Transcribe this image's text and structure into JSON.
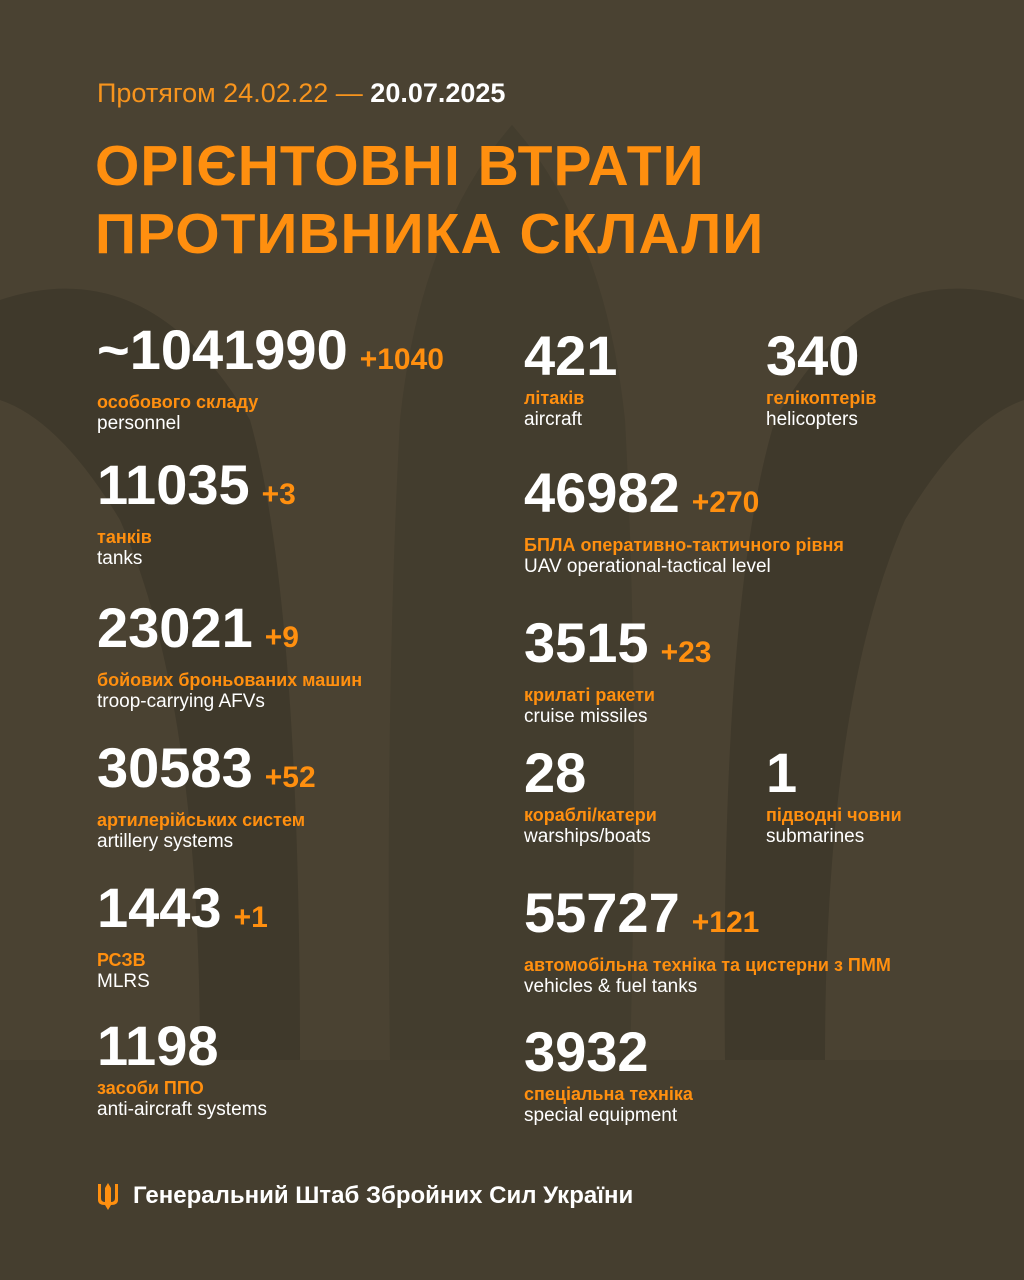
{
  "colors": {
    "accent": "#ff8f0f",
    "background": "#4a4232",
    "text": "#ffffff"
  },
  "header": {
    "period_prefix": "Протягом 24.02.22 —",
    "period_end": "20.07.2025",
    "title_line1": "ОРІЄНТОВНІ ВТРАТИ",
    "title_line2": "ПРОТИВНИКА СКЛАЛИ"
  },
  "left": [
    {
      "value": "~1041990",
      "delta": "+1040",
      "uk": "особового складу",
      "en": "personnel"
    },
    {
      "value": "11035",
      "delta": "+3",
      "uk": "танків",
      "en": "tanks"
    },
    {
      "value": "23021",
      "delta": "+9",
      "uk": "бойових броньованих машин",
      "en": "troop-carrying AFVs"
    },
    {
      "value": "30583",
      "delta": "+52",
      "uk": "артилерійських систем",
      "en": "artillery systems"
    },
    {
      "value": "1443",
      "delta": "+1",
      "uk": "РСЗВ",
      "en": "MLRS"
    },
    {
      "value": "1198",
      "delta": "",
      "uk": "засоби ППО",
      "en": "anti-aircraft systems"
    }
  ],
  "right": [
    {
      "value": "421",
      "delta": "",
      "uk": "літаків",
      "en": "aircraft"
    },
    {
      "value": "340",
      "delta": "",
      "uk": "гелікоптерів",
      "en": "helicopters"
    },
    {
      "value": "46982",
      "delta": "+270",
      "uk": "БПЛА оперативно-тактичного рівня",
      "en": "UAV operational-tactical level"
    },
    {
      "value": "3515",
      "delta": "+23",
      "uk": "крилаті ракети",
      "en": "cruise missiles"
    },
    {
      "value": "28",
      "delta": "",
      "uk": "кораблі/катери",
      "en": "warships/boats"
    },
    {
      "value": "1",
      "delta": "",
      "uk": "підводні човни",
      "en": "submarines"
    },
    {
      "value": "55727",
      "delta": "+121",
      "uk": "автомобільна техніка та цистерни з ПММ",
      "en": "vehicles & fuel tanks"
    },
    {
      "value": "3932",
      "delta": "",
      "uk": "спеціальна техніка",
      "en": "special equipment"
    }
  ],
  "footer": {
    "icon": "trident-icon",
    "text": "Генеральний Штаб Збройних Сил України"
  }
}
